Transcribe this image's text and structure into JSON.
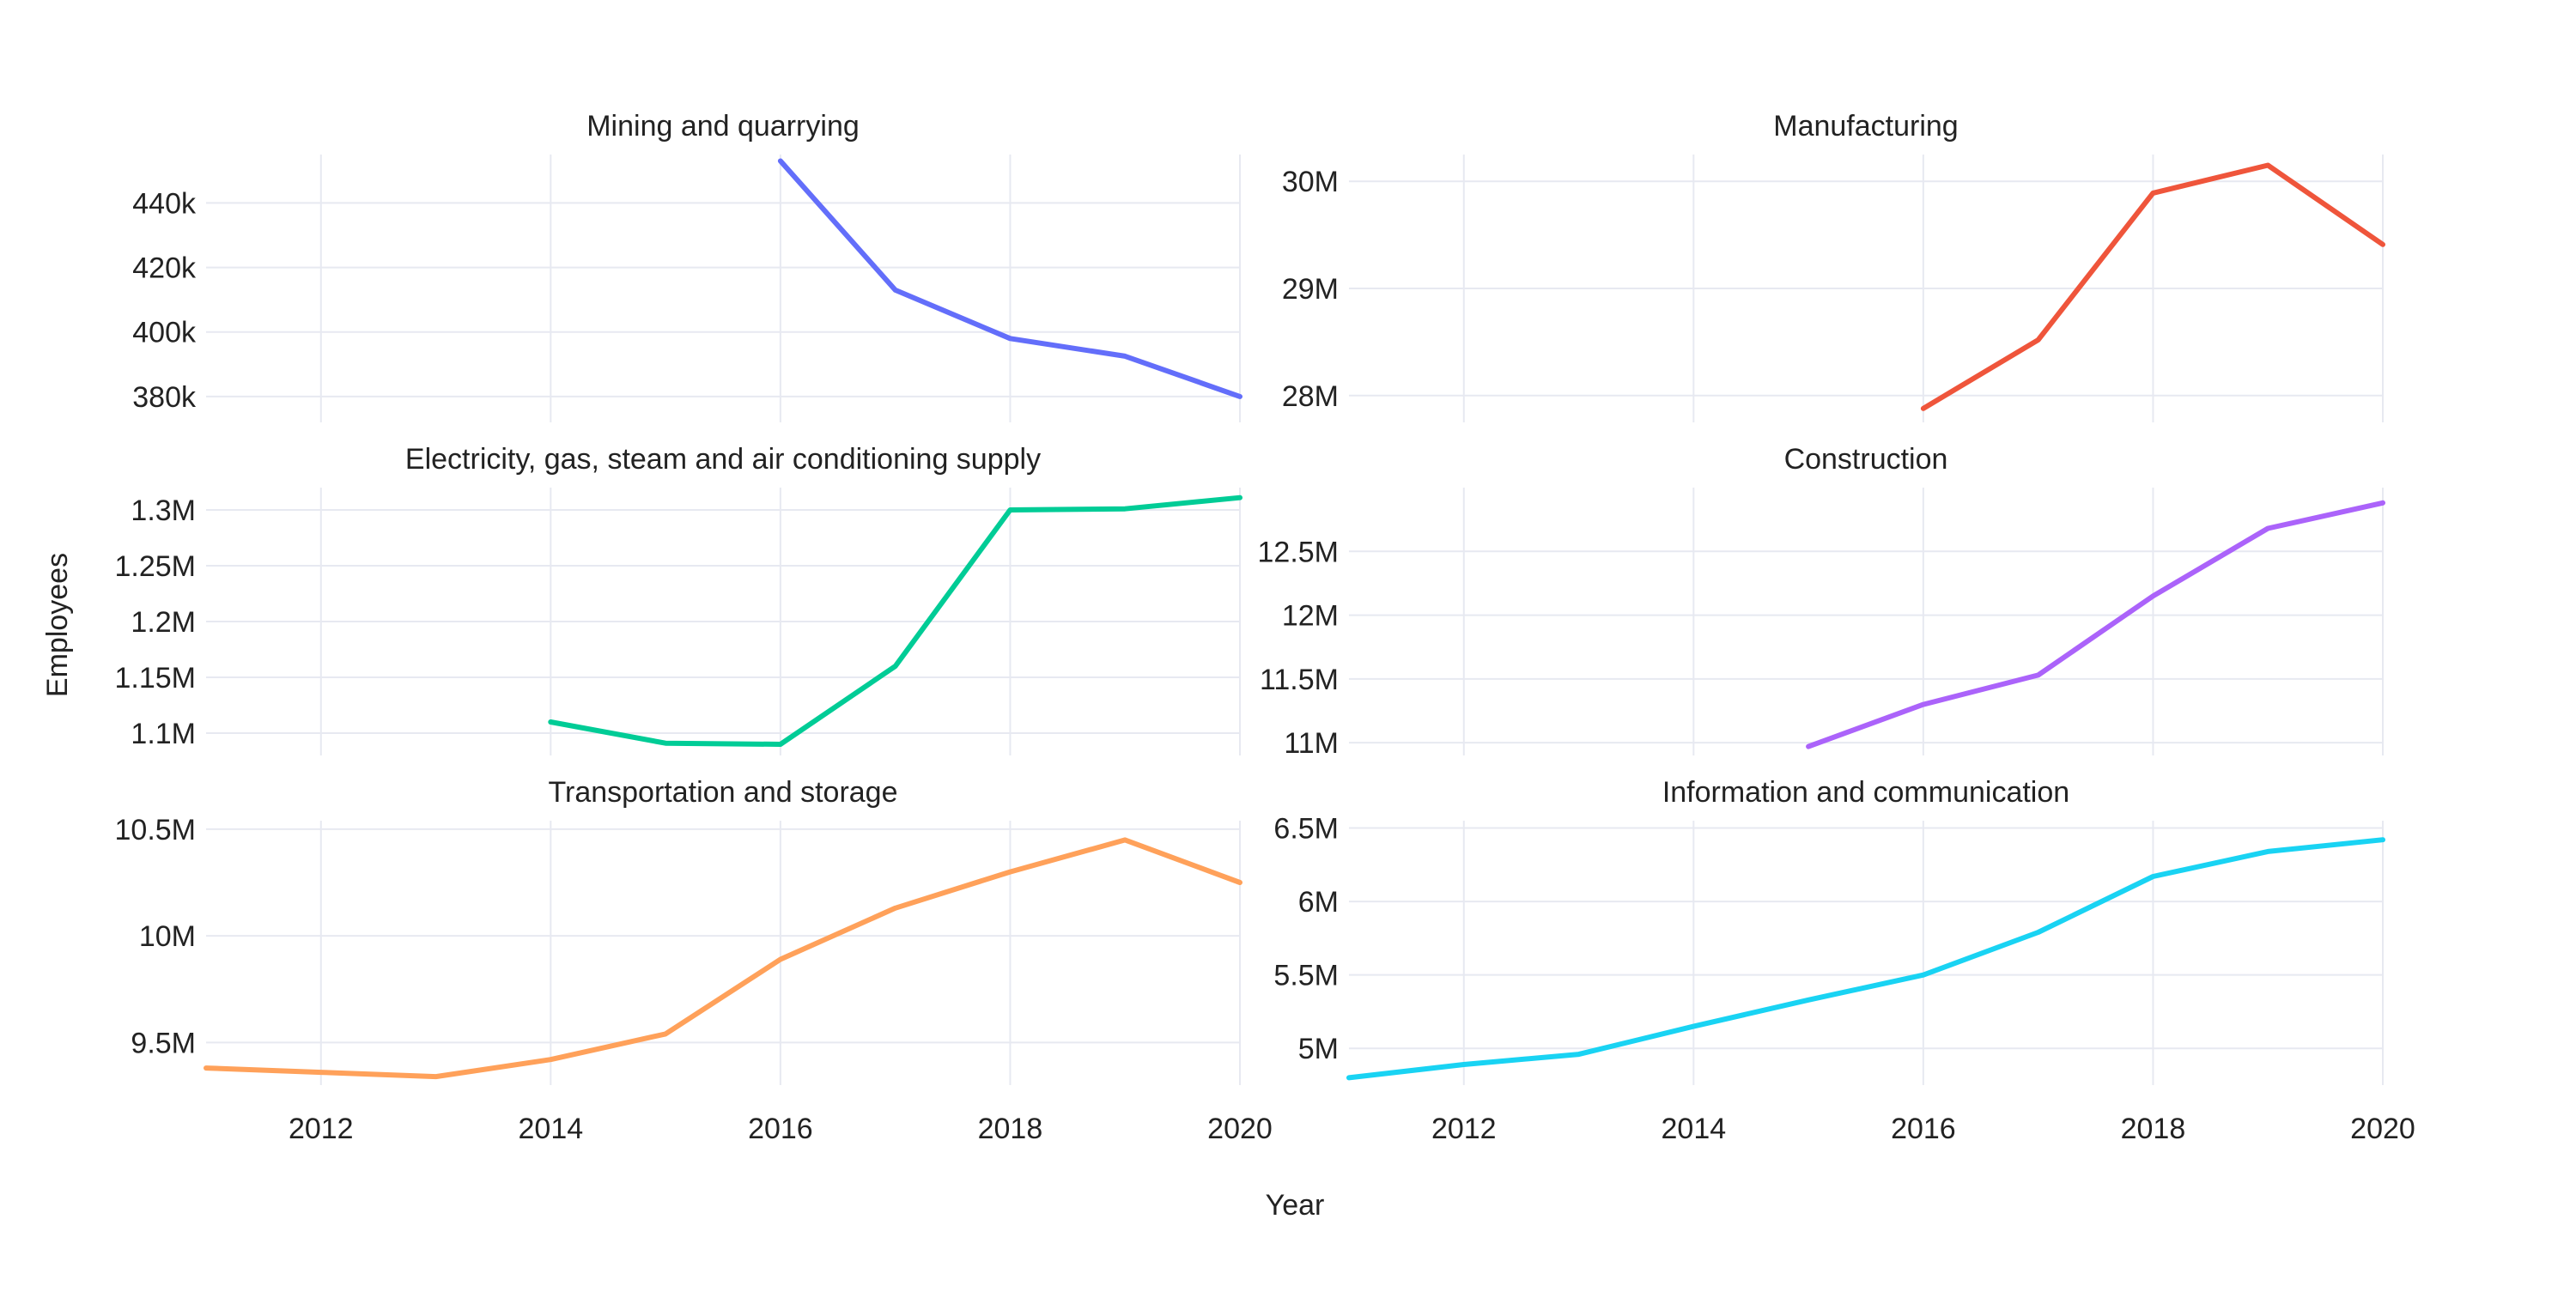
{
  "chart_data": {
    "type": "line",
    "xlabel": "Year",
    "ylabel": "Employees",
    "x_ticks": [
      2012,
      2014,
      2016,
      2018,
      2020
    ],
    "xlim": [
      2011,
      2020
    ],
    "grid": true,
    "legend": "none",
    "panels": [
      {
        "id": "mining",
        "title": "Mining and quarrying",
        "color": "#636efa",
        "ylim": [
          372000,
          455000
        ],
        "y_ticks": [
          380000,
          400000,
          420000,
          440000
        ],
        "y_tick_labels": [
          "380k",
          "400k",
          "420k",
          "440k"
        ],
        "x": [
          2016,
          2017,
          2018,
          2019,
          2020
        ],
        "values": [
          453000,
          413000,
          398000,
          392500,
          380000
        ]
      },
      {
        "id": "manufacturing",
        "title": "Manufacturing",
        "color": "#ef553b",
        "ylim": [
          27750000,
          30250000
        ],
        "y_ticks": [
          28000000,
          29000000,
          30000000
        ],
        "y_tick_labels": [
          "28M",
          "29M",
          "30M"
        ],
        "x": [
          2016,
          2017,
          2018,
          2019,
          2020
        ],
        "values": [
          27880000,
          28520000,
          29890000,
          30150000,
          29410000
        ]
      },
      {
        "id": "electricity",
        "title": "Electricity, gas, steam and air conditioning supply",
        "color": "#00cc96",
        "ylim": [
          1080000,
          1320000
        ],
        "y_ticks": [
          1100000,
          1150000,
          1200000,
          1250000,
          1300000
        ],
        "y_tick_labels": [
          "1.1M",
          "1.15M",
          "1.2M",
          "1.25M",
          "1.3M"
        ],
        "x": [
          2014,
          2015,
          2016,
          2017,
          2018,
          2019,
          2020
        ],
        "values": [
          1110000,
          1091000,
          1090000,
          1160000,
          1300000,
          1301000,
          1311000
        ]
      },
      {
        "id": "construction",
        "title": "Construction",
        "color": "#ab63fa",
        "ylim": [
          10900000,
          13000000
        ],
        "y_ticks": [
          11000000,
          11500000,
          12000000,
          12500000
        ],
        "y_tick_labels": [
          "11M",
          "11.5M",
          "12M",
          "12.5M"
        ],
        "x": [
          2015,
          2016,
          2017,
          2018,
          2019,
          2020
        ],
        "values": [
          10970000,
          11300000,
          11530000,
          12150000,
          12680000,
          12880000
        ]
      },
      {
        "id": "transport",
        "title": "Transportation and storage",
        "color": "#ffa15a",
        "ylim": [
          9300000,
          10540000
        ],
        "y_ticks": [
          9500000,
          10000000,
          10500000
        ],
        "y_tick_labels": [
          "9.5M",
          "10M",
          "10.5M"
        ],
        "x": [
          2011,
          2012,
          2013,
          2014,
          2015,
          2016,
          2017,
          2018,
          2019,
          2020
        ],
        "values": [
          9380000,
          9360000,
          9340000,
          9420000,
          9540000,
          9890000,
          10130000,
          10300000,
          10450000,
          10250000
        ]
      },
      {
        "id": "information",
        "title": "Information and communication",
        "color": "#19d3f3",
        "ylim": [
          4750000,
          6550000
        ],
        "y_ticks": [
          5000000,
          5500000,
          6000000,
          6500000
        ],
        "y_tick_labels": [
          "5M",
          "5.5M",
          "6M",
          "6.5M"
        ],
        "x": [
          2011,
          2012,
          2013,
          2014,
          2015,
          2016,
          2017,
          2018,
          2019,
          2020
        ],
        "values": [
          4800000,
          4890000,
          4960000,
          5150000,
          5330000,
          5500000,
          5790000,
          6170000,
          6340000,
          6420000
        ]
      }
    ]
  }
}
